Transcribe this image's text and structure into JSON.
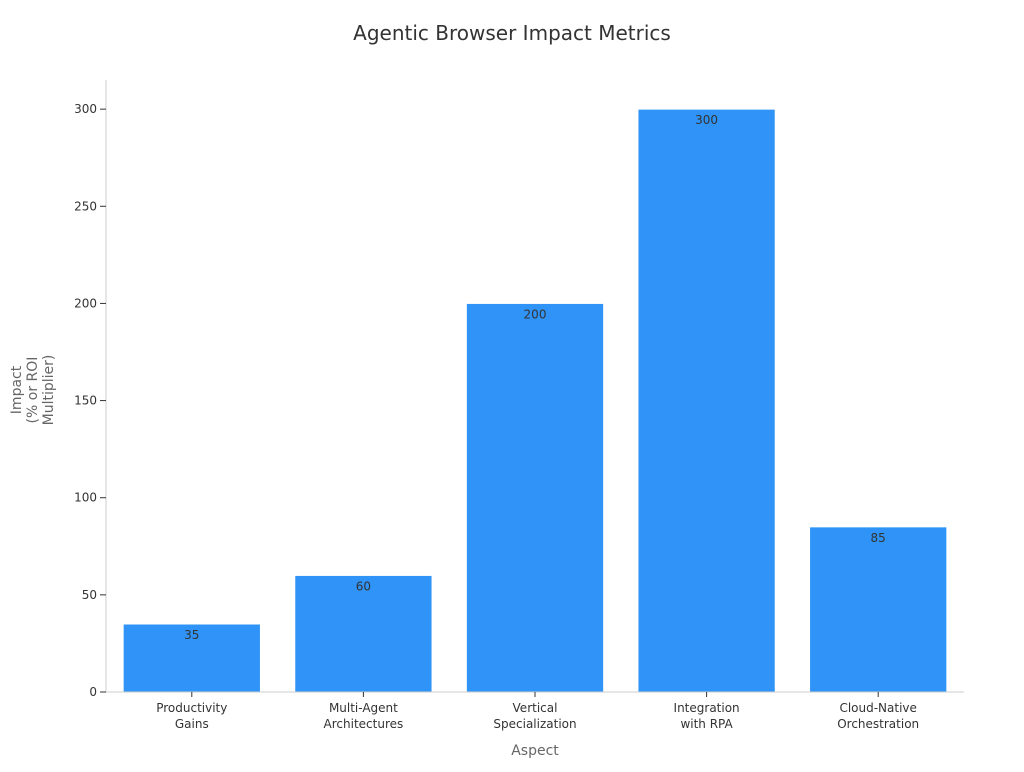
{
  "chart_data": {
    "type": "bar",
    "title": "Agentic Browser Impact Metrics",
    "xlabel": "Aspect",
    "ylabel": [
      "Impact",
      "(% or ROI",
      "Multiplier)"
    ],
    "categories": [
      [
        "Productivity",
        "Gains"
      ],
      [
        "Multi-Agent",
        "Architectures"
      ],
      [
        "Vertical",
        "Specialization"
      ],
      [
        "Integration",
        "with RPA"
      ],
      [
        "Cloud-Native",
        "Orchestration"
      ]
    ],
    "values": [
      35,
      60,
      200,
      300,
      85
    ],
    "data_labels": [
      "35",
      "60",
      "200",
      "300",
      "85"
    ],
    "ylim": [
      0,
      315
    ],
    "yticks": [
      0,
      50,
      100,
      150,
      200,
      250,
      300
    ],
    "grid": false,
    "legend": "none",
    "colors": {
      "bar": "#2f93f7",
      "bar_edge": "#ffffff"
    }
  }
}
